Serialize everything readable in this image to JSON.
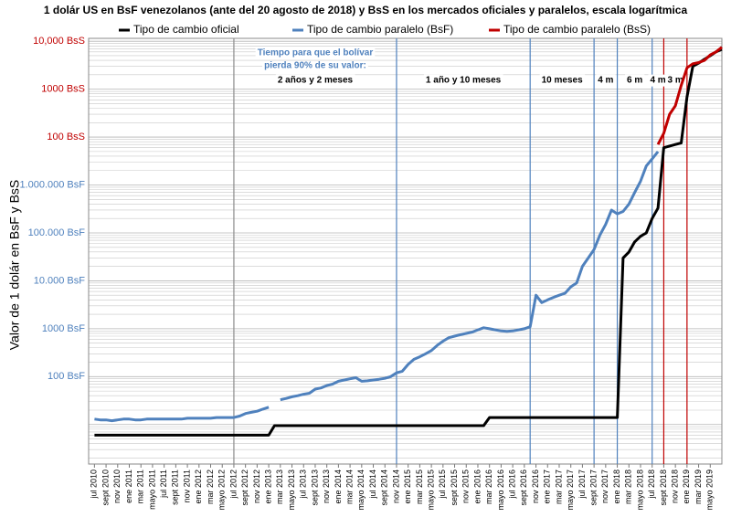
{
  "chart_data": {
    "type": "line",
    "title": "1 dolár US en BsF venezolanos (ante del 20 agosto de 2018) y BsS en los mercados oficiales y paralelos, escala logarítmica",
    "ylabel": "Valor de 1 dolár en BsF y BsS",
    "log_y": true,
    "grid": true,
    "minor_grid": true,
    "xlim": [
      "2010-06",
      "2019-07"
    ],
    "ylim": [
      1.5,
      1150000000
    ],
    "yticks": [
      {
        "value": 100,
        "label": "100 BsF",
        "color": "#4f81bd"
      },
      {
        "value": 1000,
        "label": "1000 BsF",
        "color": "#4f81bd"
      },
      {
        "value": 10000,
        "label": "10.000 BsF",
        "color": "#4f81bd"
      },
      {
        "value": 100000,
        "label": "100.000 BsF",
        "color": "#4f81bd"
      },
      {
        "value": 1000000,
        "label": "1.000.000 BsF",
        "color": "#4f81bd"
      },
      {
        "value": 10000000,
        "label": "100 BsS",
        "color": "#c00000"
      },
      {
        "value": 100000000,
        "label": "1000 BsS",
        "color": "#c00000"
      },
      {
        "value": 1000000000,
        "label": "10,000 BsS",
        "color": "#c00000"
      }
    ],
    "xticks": [
      {
        "value": "2010-07",
        "label": "jul 2010"
      },
      {
        "value": "2010-09",
        "label": "sept 2010"
      },
      {
        "value": "2010-11",
        "label": "nov 2010"
      },
      {
        "value": "2011-01",
        "label": "ene 2011"
      },
      {
        "value": "2011-03",
        "label": "mar 2011"
      },
      {
        "value": "2011-05",
        "label": "mayo 2011"
      },
      {
        "value": "2011-07",
        "label": "jul 2011"
      },
      {
        "value": "2011-09",
        "label": "sept 2011"
      },
      {
        "value": "2011-11",
        "label": "nov 2011"
      },
      {
        "value": "2012-01",
        "label": "ene 2012"
      },
      {
        "value": "2012-03",
        "label": "mar 2012"
      },
      {
        "value": "2012-05",
        "label": "mayo 2012"
      },
      {
        "value": "2012-07",
        "label": "jul 2012"
      },
      {
        "value": "2012-09",
        "label": "sept 2012"
      },
      {
        "value": "2012-11",
        "label": "nov 2012"
      },
      {
        "value": "2013-01",
        "label": "ene 2013"
      },
      {
        "value": "2013-03",
        "label": "mar 2013"
      },
      {
        "value": "2013-05",
        "label": "mayo 2013"
      },
      {
        "value": "2013-07",
        "label": "jul 2013"
      },
      {
        "value": "2013-09",
        "label": "sept 2013"
      },
      {
        "value": "2013-11",
        "label": "nov 2013"
      },
      {
        "value": "2014-01",
        "label": "ene 2014"
      },
      {
        "value": "2014-03",
        "label": "mar 2014"
      },
      {
        "value": "2014-05",
        "label": "mayo 2014"
      },
      {
        "value": "2014-07",
        "label": "jul 2014"
      },
      {
        "value": "2014-09",
        "label": "sept 2014"
      },
      {
        "value": "2014-11",
        "label": "nov 2014"
      },
      {
        "value": "2015-01",
        "label": "ene 2015"
      },
      {
        "value": "2015-03",
        "label": "mar 2015"
      },
      {
        "value": "2015-05",
        "label": "mayo 2015"
      },
      {
        "value": "2015-07",
        "label": "jul 2015"
      },
      {
        "value": "2015-09",
        "label": "sept 2015"
      },
      {
        "value": "2015-11",
        "label": "nov 2015"
      },
      {
        "value": "2016-01",
        "label": "ene 2016"
      },
      {
        "value": "2016-03",
        "label": "mar 2016"
      },
      {
        "value": "2016-05",
        "label": "mayo 2016"
      },
      {
        "value": "2016-07",
        "label": "jul 2016"
      },
      {
        "value": "2016-09",
        "label": "sept 2016"
      },
      {
        "value": "2016-11",
        "label": "nov 2016"
      },
      {
        "value": "2017-01",
        "label": "ene 2017"
      },
      {
        "value": "2017-03",
        "label": "mar 2017"
      },
      {
        "value": "2017-05",
        "label": "mayo 2017"
      },
      {
        "value": "2017-07",
        "label": "jul 2017"
      },
      {
        "value": "2017-09",
        "label": "sept 2017"
      },
      {
        "value": "2017-11",
        "label": "nov 2017"
      },
      {
        "value": "2018-01",
        "label": "ene 2018"
      },
      {
        "value": "2018-03",
        "label": "mar 2018"
      },
      {
        "value": "2018-05",
        "label": "mayo 2018"
      },
      {
        "value": "2018-07",
        "label": "jul 2018"
      },
      {
        "value": "2018-09",
        "label": "sept 2018"
      },
      {
        "value": "2018-11",
        "label": "nov 2018"
      },
      {
        "value": "2019-01",
        "label": "ene 2019"
      },
      {
        "value": "2019-03",
        "label": "mar 2019"
      },
      {
        "value": "2019-05",
        "label": "mayo 2019"
      }
    ],
    "series": [
      {
        "name": "Tipo de cambio oficial",
        "color": "#000000",
        "x": [
          "2010-07",
          "2013-01",
          "2013-02",
          "2016-02",
          "2016-03",
          "2018-01",
          "2018-02",
          "2018-03",
          "2018-04",
          "2018-05",
          "2018-06",
          "2018-07",
          "2018-08",
          "2018-09",
          "2018-10",
          "2018-11",
          "2018-12",
          "2019-01",
          "2019-02",
          "2019-03",
          "2019-04",
          "2019-05",
          "2019-06",
          "2019-07"
        ],
        "values": [
          6,
          6,
          9.5,
          9.5,
          14,
          14,
          30000,
          40000,
          65000,
          85000,
          100000,
          200000,
          330000,
          6000000,
          6500000,
          7000000,
          7500000,
          70000000,
          300000000,
          350000000,
          420000000,
          500000000,
          600000000,
          680000000
        ]
      },
      {
        "name": "Tipo de cambio paralelo (BsF)",
        "color": "#4f81bd",
        "x": [
          "2010-07",
          "2010-08",
          "2010-09",
          "2010-10",
          "2010-11",
          "2010-12",
          "2011-01",
          "2011-02",
          "2011-03",
          "2011-04",
          "2011-05",
          "2011-06",
          "2011-07",
          "2011-08",
          "2011-09",
          "2011-10",
          "2011-11",
          "2011-12",
          "2012-01",
          "2012-02",
          "2012-03",
          "2012-04",
          "2012-05",
          "2012-06",
          "2012-07",
          "2012-08",
          "2012-09",
          "2012-10",
          "2012-11",
          "2012-12",
          "2013-01",
          "2013-02",
          "2013-03",
          "2013-04",
          "2013-05",
          "2013-06",
          "2013-07",
          "2013-08",
          "2013-09",
          "2013-10",
          "2013-11",
          "2013-12",
          "2014-01",
          "2014-02",
          "2014-03",
          "2014-04",
          "2014-05",
          "2014-06",
          "2014-07",
          "2014-08",
          "2014-09",
          "2014-10",
          "2014-11",
          "2014-12",
          "2015-01",
          "2015-02",
          "2015-03",
          "2015-04",
          "2015-05",
          "2015-06",
          "2015-07",
          "2015-08",
          "2015-09",
          "2015-10",
          "2015-11",
          "2015-12",
          "2016-01",
          "2016-02",
          "2016-03",
          "2016-04",
          "2016-05",
          "2016-06",
          "2016-07",
          "2016-08",
          "2016-09",
          "2016-10",
          "2016-11",
          "2016-12",
          "2017-01",
          "2017-02",
          "2017-03",
          "2017-04",
          "2017-05",
          "2017-06",
          "2017-07",
          "2017-08",
          "2017-09",
          "2017-10",
          "2017-11",
          "2017-12",
          "2018-01",
          "2018-02",
          "2018-03",
          "2018-04",
          "2018-05",
          "2018-06",
          "2018-07",
          "2018-08"
        ],
        "values": [
          13,
          12.5,
          12.5,
          12,
          12.5,
          13,
          13,
          12.5,
          12.5,
          13,
          13,
          13,
          13,
          13,
          13,
          13,
          13.5,
          13.5,
          13.5,
          13.5,
          13.5,
          14,
          14,
          14,
          14,
          15,
          17,
          18,
          19,
          21,
          23,
          null,
          33,
          35,
          38,
          40,
          43,
          45,
          55,
          58,
          65,
          70,
          80,
          85,
          90,
          95,
          80,
          82,
          85,
          88,
          92,
          100,
          120,
          130,
          180,
          230,
          260,
          300,
          350,
          450,
          550,
          650,
          700,
          750,
          800,
          850,
          950,
          1050,
          1000,
          950,
          900,
          880,
          900,
          950,
          1000,
          1100,
          5000,
          3500,
          4000,
          4500,
          5000,
          5500,
          7500,
          9000,
          20000,
          30000,
          45000,
          90000,
          150000,
          300000,
          250000,
          280000,
          400000,
          700000,
          1200000,
          2500000,
          3500000,
          5000000
        ]
      },
      {
        "name": "Tipo de cambio paralelo (BsS)",
        "color": "#c00000",
        "x": [
          "2018-08",
          "2018-09",
          "2018-10",
          "2018-11",
          "2018-12",
          "2019-01",
          "2019-02",
          "2019-03",
          "2019-04",
          "2019-05",
          "2019-06",
          "2019-07"
        ],
        "values": [
          7000000,
          12000000,
          30000000,
          45000000,
          120000000,
          280000000,
          340000000,
          360000000,
          400000000,
          520000000,
          600000000,
          750000000
        ]
      }
    ],
    "vlines": [
      {
        "x": "2012-07",
        "color": "#8c8c8c"
      },
      {
        "x": "2014-11",
        "color": "#4f81bd"
      },
      {
        "x": "2016-10",
        "color": "#4f81bd"
      },
      {
        "x": "2017-09",
        "color": "#4f81bd"
      },
      {
        "x": "2018-01",
        "color": "#4f81bd"
      },
      {
        "x": "2018-07",
        "color": "#4f81bd"
      },
      {
        "x": "2018-09",
        "color": "#c00000"
      },
      {
        "x": "2019-01",
        "color": "#c00000"
      }
    ],
    "periods": [
      "2 años y 2 meses",
      "1 año y 10 meses",
      "10 meses",
      "4 m",
      "6 m",
      "4 m",
      "3 m"
    ],
    "annotation": [
      "Tiempo para que el bolívar",
      "pierda 90% de su valor:"
    ]
  }
}
